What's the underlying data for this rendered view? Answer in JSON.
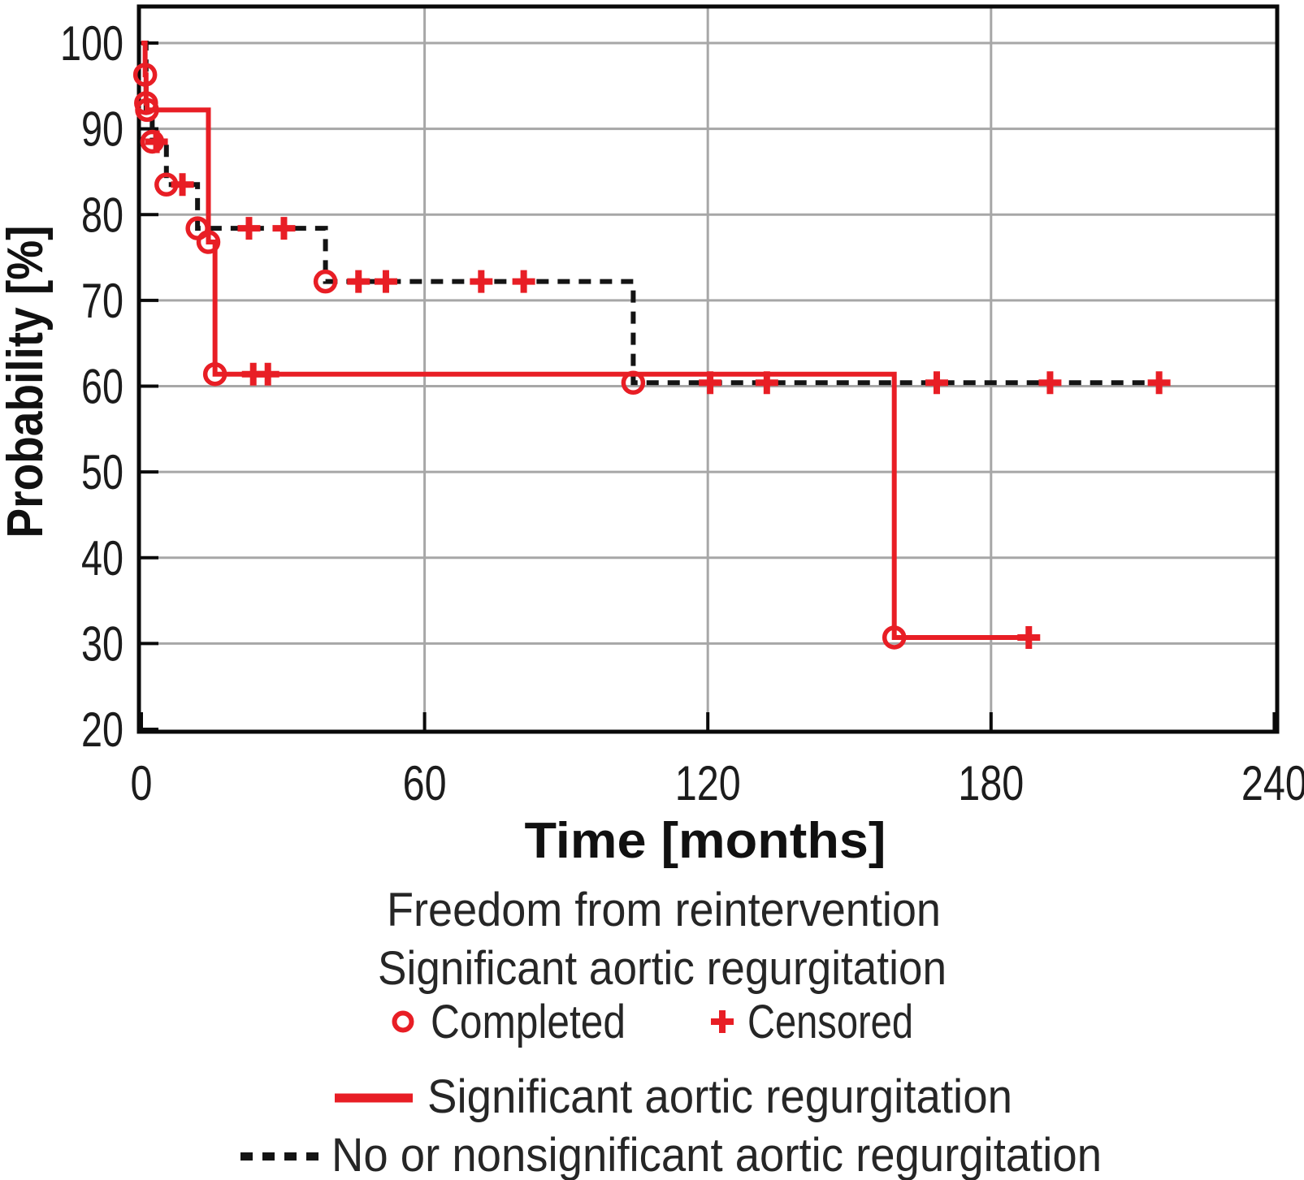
{
  "chart_data": {
    "type": "line",
    "subtype": "kaplan-meier-step",
    "title": "",
    "xlabel": "Time [months]",
    "ylabel": "Probability [%]",
    "xlim": [
      0,
      240
    ],
    "ylim": [
      20,
      100
    ],
    "xticks": [
      0,
      60,
      120,
      180,
      240
    ],
    "yticks": [
      100,
      90,
      80,
      70,
      60,
      50,
      40,
      30,
      20
    ],
    "grid": {
      "y_lines": [
        100,
        90,
        80,
        70,
        60,
        50,
        40,
        30
      ],
      "x_lines": [
        60,
        120,
        180
      ]
    },
    "colors": {
      "significant": "#e81e25",
      "nonsignificant": "#141414",
      "marker": "#e81e25",
      "grid": "#a7a7a7",
      "frame": "#0a0a0a"
    },
    "series": [
      {
        "name": "No or nonsignificant aortic regurgitation",
        "line": "dashed",
        "steps": [
          [
            0,
            100
          ],
          [
            1.0,
            92.2
          ],
          [
            2.3,
            88.5
          ],
          [
            5.3,
            83.5
          ],
          [
            11.9,
            78.4
          ],
          [
            39,
            72.2
          ],
          [
            104.2,
            60.4
          ]
        ],
        "end": 215.6,
        "completed": [
          [
            2.3,
            88.5
          ],
          [
            5.3,
            83.5
          ],
          [
            11.9,
            78.4
          ],
          [
            39,
            72.2
          ],
          [
            104.2,
            60.4
          ]
        ],
        "censored": [
          [
            3.2,
            88.5
          ],
          [
            8.7,
            83.5
          ],
          [
            22.8,
            78.4
          ],
          [
            30.2,
            78.4
          ],
          [
            46,
            72.2
          ],
          [
            51.8,
            72.2
          ],
          [
            72,
            72.2
          ],
          [
            81,
            72.2
          ],
          [
            120.5,
            60.4
          ],
          [
            132.5,
            60.4
          ],
          [
            168.5,
            60.4
          ],
          [
            192.5,
            60.4
          ],
          [
            215.6,
            60.4
          ]
        ]
      },
      {
        "name": "Significant aortic regurgitation",
        "line": "solid",
        "steps": [
          [
            0,
            100
          ],
          [
            0.8,
            96.3
          ],
          [
            1.0,
            93.0
          ],
          [
            1.2,
            92.2
          ],
          [
            14.2,
            76.8
          ],
          [
            15.6,
            61.4
          ],
          [
            159.5,
            30.7
          ]
        ],
        "end": 188,
        "completed": [
          [
            0.8,
            96.3
          ],
          [
            1.0,
            93.0
          ],
          [
            1.2,
            92.2
          ],
          [
            14.2,
            76.8
          ],
          [
            15.6,
            61.4
          ],
          [
            159.5,
            30.7
          ]
        ],
        "censored": [
          [
            23.7,
            61.4
          ],
          [
            26.8,
            61.4
          ],
          [
            188,
            30.7
          ]
        ]
      }
    ],
    "legend": {
      "heading1": "Freedom from reintervention",
      "heading2": "Significant aortic regurgitation",
      "completed": "Completed",
      "censored": "Censored",
      "series_solid": "Significant aortic regurgitation",
      "series_dashed": "No or nonsignificant aortic regurgitation"
    }
  }
}
